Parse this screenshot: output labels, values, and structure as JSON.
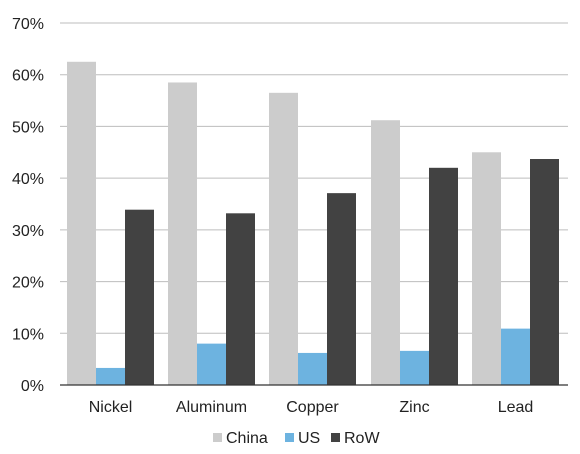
{
  "chart_data": {
    "type": "bar",
    "categories": [
      "Nickel",
      "Aluminum",
      "Copper",
      "Zinc",
      "Lead"
    ],
    "series": [
      {
        "name": "China",
        "color": "#cccccc",
        "values": [
          62.5,
          58.5,
          56.5,
          51.2,
          45.0
        ]
      },
      {
        "name": "US",
        "color": "#6db3e0",
        "values": [
          3.3,
          8.0,
          6.2,
          6.6,
          10.9
        ]
      },
      {
        "name": "RoW",
        "color": "#424242",
        "values": [
          33.9,
          33.2,
          37.1,
          42.0,
          43.7
        ]
      }
    ],
    "yticks": [
      "0%",
      "10%",
      "20%",
      "30%",
      "40%",
      "50%",
      "60%",
      "70%"
    ],
    "ylim": [
      0,
      70
    ],
    "ytick_step": 10,
    "grid": true,
    "legend_position": "bottom-center",
    "title": "",
    "xlabel": "",
    "ylabel": ""
  }
}
